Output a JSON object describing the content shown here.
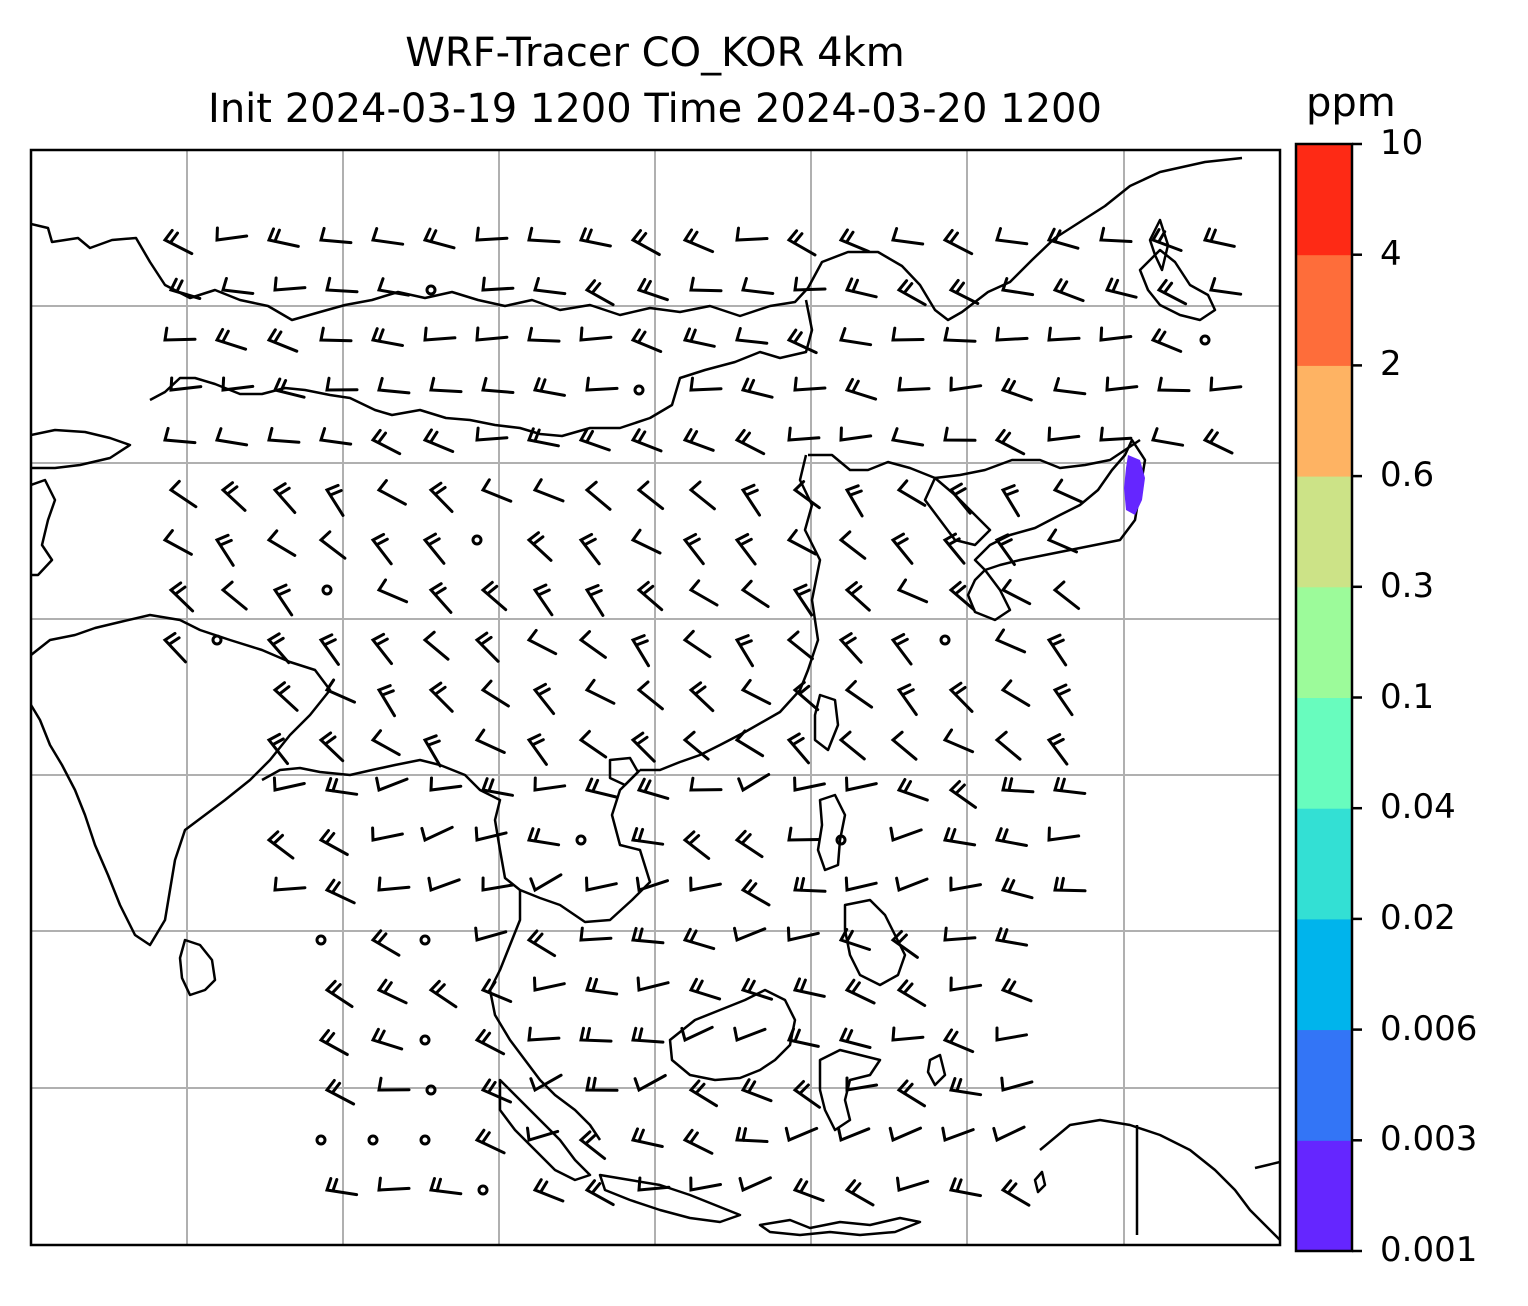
{
  "title": {
    "line1": "WRF-Tracer CO_KOR 4km",
    "line2": "Init 2024-03-19 1200 Time 2024-03-20 1200"
  },
  "colorbar": {
    "unit": "ppm",
    "ticks": [
      "10",
      "4",
      "2",
      "0.6",
      "0.3",
      "0.1",
      "0.04",
      "0.02",
      "0.006",
      "0.003",
      "0.001"
    ],
    "colors": [
      "#6526ff",
      "#3375f6",
      "#00b4ec",
      "#33e0d4",
      "#68fcbe",
      "#9cfb9a",
      "#cce387",
      "#feb363",
      "#fe6d3a",
      "#fe2a15"
    ]
  },
  "map": {
    "gridlines": true,
    "wind_barbs": true,
    "tracer_color": "#6526ff"
  }
}
